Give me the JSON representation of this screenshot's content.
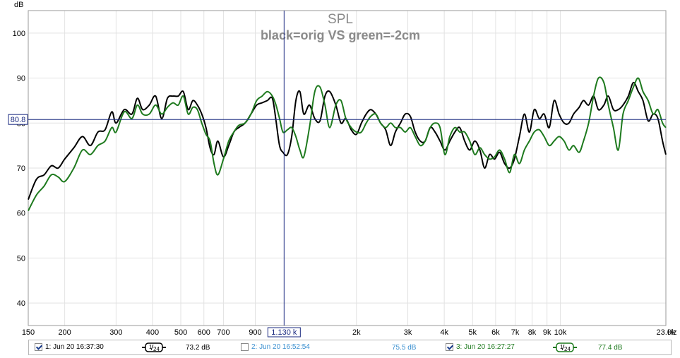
{
  "chart_data": {
    "type": "line",
    "title": "SPL",
    "subtitle": "black=orig VS green=-2cm",
    "ylabel": "dB",
    "xlabel": "Hz",
    "x_scale": "log",
    "xlim": [
      150,
      23000
    ],
    "ylim": [
      35,
      105
    ],
    "y_ticks": [
      40,
      50,
      60,
      70,
      80,
      90,
      100
    ],
    "x_ticks": [
      {
        "v": 150,
        "label": "150"
      },
      {
        "v": 200,
        "label": "200"
      },
      {
        "v": 300,
        "label": "300"
      },
      {
        "v": 400,
        "label": "400"
      },
      {
        "v": 500,
        "label": "500"
      },
      {
        "v": 600,
        "label": "600"
      },
      {
        "v": 700,
        "label": "700"
      },
      {
        "v": 900,
        "label": "900"
      },
      {
        "v": 2000,
        "label": "2k"
      },
      {
        "v": 3000,
        "label": "3k"
      },
      {
        "v": 4000,
        "label": "4k"
      },
      {
        "v": 5000,
        "label": "5k"
      },
      {
        "v": 6000,
        "label": "6k"
      },
      {
        "v": 7000,
        "label": "7k"
      },
      {
        "v": 8000,
        "label": "8k"
      },
      {
        "v": 9000,
        "label": "9k"
      },
      {
        "v": 10000,
        "label": "10k"
      },
      {
        "v": 23000,
        "label": "23.0k"
      }
    ],
    "cursor": {
      "x": 1130,
      "y": 80.8,
      "x_label": "1.130 k",
      "y_label": "80.8"
    },
    "series": [
      {
        "color": "#000000",
        "points": [
          [
            150,
            63
          ],
          [
            160,
            67.5
          ],
          [
            170,
            68.5
          ],
          [
            180,
            70.5
          ],
          [
            190,
            70
          ],
          [
            200,
            72
          ],
          [
            215,
            74.5
          ],
          [
            230,
            77
          ],
          [
            245,
            75
          ],
          [
            260,
            78
          ],
          [
            275,
            78.5
          ],
          [
            290,
            82.5
          ],
          [
            300,
            80
          ],
          [
            320,
            83
          ],
          [
            340,
            82
          ],
          [
            355,
            85.5
          ],
          [
            370,
            83
          ],
          [
            390,
            84
          ],
          [
            410,
            86
          ],
          [
            430,
            81
          ],
          [
            450,
            85.5
          ],
          [
            470,
            86
          ],
          [
            490,
            86
          ],
          [
            510,
            87
          ],
          [
            530,
            83
          ],
          [
            550,
            85
          ],
          [
            570,
            84
          ],
          [
            590,
            82
          ],
          [
            610,
            79
          ],
          [
            630,
            74.5
          ],
          [
            650,
            73
          ],
          [
            670,
            76
          ],
          [
            700,
            72.5
          ],
          [
            730,
            75
          ],
          [
            760,
            78
          ],
          [
            790,
            79
          ],
          [
            830,
            80
          ],
          [
            870,
            82
          ],
          [
            910,
            84
          ],
          [
            950,
            84.5
          ],
          [
            990,
            85
          ],
          [
            1030,
            85.5
          ],
          [
            1060,
            80.5
          ],
          [
            1090,
            75
          ],
          [
            1120,
            73.5
          ],
          [
            1160,
            73
          ],
          [
            1200,
            77
          ],
          [
            1240,
            85
          ],
          [
            1280,
            87
          ],
          [
            1320,
            82
          ],
          [
            1380,
            84
          ],
          [
            1440,
            81
          ],
          [
            1500,
            80.5
          ],
          [
            1560,
            86
          ],
          [
            1620,
            87
          ],
          [
            1700,
            84
          ],
          [
            1770,
            80
          ],
          [
            1840,
            81
          ],
          [
            1920,
            78.5
          ],
          [
            2000,
            77.5
          ],
          [
            2080,
            80
          ],
          [
            2160,
            82
          ],
          [
            2240,
            83
          ],
          [
            2330,
            82
          ],
          [
            2420,
            80
          ],
          [
            2520,
            78.5
          ],
          [
            2620,
            75
          ],
          [
            2720,
            78
          ],
          [
            2830,
            80
          ],
          [
            2940,
            82
          ],
          [
            3060,
            81.5
          ],
          [
            3180,
            78
          ],
          [
            3310,
            76
          ],
          [
            3440,
            76
          ],
          [
            3580,
            79
          ],
          [
            3720,
            78
          ],
          [
            3870,
            76
          ],
          [
            4020,
            74
          ],
          [
            4180,
            76
          ],
          [
            4350,
            78
          ],
          [
            4520,
            79
          ],
          [
            4700,
            76
          ],
          [
            4890,
            74
          ],
          [
            5090,
            76
          ],
          [
            5300,
            74
          ],
          [
            5500,
            70
          ],
          [
            5720,
            73
          ],
          [
            5950,
            72
          ],
          [
            6190,
            73.5
          ],
          [
            6440,
            71
          ],
          [
            6700,
            70
          ],
          [
            6960,
            72
          ],
          [
            7240,
            77
          ],
          [
            7530,
            82
          ],
          [
            7830,
            78
          ],
          [
            8140,
            83
          ],
          [
            8470,
            81
          ],
          [
            8800,
            82
          ],
          [
            9160,
            79
          ],
          [
            9520,
            85
          ],
          [
            9900,
            82
          ],
          [
            10300,
            80
          ],
          [
            10700,
            80
          ],
          [
            11100,
            82
          ],
          [
            11600,
            83.5
          ],
          [
            12000,
            85
          ],
          [
            12500,
            84
          ],
          [
            13000,
            86
          ],
          [
            13500,
            83
          ],
          [
            14100,
            84
          ],
          [
            14600,
            86
          ],
          [
            15200,
            83
          ],
          [
            15800,
            83
          ],
          [
            16400,
            84
          ],
          [
            17100,
            86
          ],
          [
            17800,
            89
          ],
          [
            18500,
            87
          ],
          [
            19200,
            85
          ],
          [
            20000,
            80.5
          ],
          [
            20800,
            82
          ],
          [
            21600,
            81
          ],
          [
            22400,
            76
          ],
          [
            23000,
            73
          ]
        ]
      },
      {
        "color": "#1e7a1e",
        "points": [
          [
            150,
            60.5
          ],
          [
            160,
            64
          ],
          [
            170,
            66
          ],
          [
            180,
            68.5
          ],
          [
            190,
            68
          ],
          [
            200,
            67
          ],
          [
            215,
            70
          ],
          [
            230,
            74
          ],
          [
            245,
            73
          ],
          [
            260,
            75
          ],
          [
            275,
            76
          ],
          [
            290,
            79
          ],
          [
            300,
            78
          ],
          [
            320,
            82.5
          ],
          [
            340,
            81
          ],
          [
            355,
            84
          ],
          [
            370,
            82
          ],
          [
            390,
            82
          ],
          [
            410,
            84
          ],
          [
            430,
            82
          ],
          [
            450,
            83.5
          ],
          [
            470,
            84.5
          ],
          [
            490,
            84
          ],
          [
            510,
            86
          ],
          [
            530,
            82
          ],
          [
            550,
            83.5
          ],
          [
            570,
            83
          ],
          [
            590,
            80
          ],
          [
            610,
            77.5
          ],
          [
            630,
            76
          ],
          [
            650,
            71
          ],
          [
            670,
            68.5
          ],
          [
            700,
            72
          ],
          [
            730,
            76
          ],
          [
            760,
            78
          ],
          [
            790,
            79.5
          ],
          [
            830,
            80
          ],
          [
            870,
            82
          ],
          [
            910,
            85
          ],
          [
            950,
            86
          ],
          [
            990,
            87
          ],
          [
            1030,
            86
          ],
          [
            1060,
            84
          ],
          [
            1090,
            81
          ],
          [
            1120,
            78
          ],
          [
            1160,
            78.5
          ],
          [
            1200,
            79
          ],
          [
            1240,
            77
          ],
          [
            1280,
            74
          ],
          [
            1320,
            72.5
          ],
          [
            1380,
            79
          ],
          [
            1440,
            87
          ],
          [
            1500,
            88
          ],
          [
            1560,
            84
          ],
          [
            1620,
            79
          ],
          [
            1700,
            84
          ],
          [
            1770,
            85
          ],
          [
            1840,
            81
          ],
          [
            1920,
            79
          ],
          [
            2000,
            78
          ],
          [
            2080,
            78
          ],
          [
            2160,
            80
          ],
          [
            2240,
            81.5
          ],
          [
            2330,
            82
          ],
          [
            2420,
            80
          ],
          [
            2520,
            79
          ],
          [
            2620,
            80
          ],
          [
            2720,
            79
          ],
          [
            2830,
            79
          ],
          [
            2940,
            78
          ],
          [
            3060,
            79
          ],
          [
            3180,
            77
          ],
          [
            3310,
            75
          ],
          [
            3440,
            76
          ],
          [
            3580,
            79
          ],
          [
            3720,
            80
          ],
          [
            3870,
            79
          ],
          [
            4020,
            73
          ],
          [
            4180,
            77
          ],
          [
            4350,
            79
          ],
          [
            4520,
            78
          ],
          [
            4700,
            78
          ],
          [
            4890,
            76
          ],
          [
            5090,
            73
          ],
          [
            5300,
            74.5
          ],
          [
            5500,
            73
          ],
          [
            5720,
            72
          ],
          [
            5950,
            72.5
          ],
          [
            6190,
            74
          ],
          [
            6440,
            72
          ],
          [
            6700,
            69
          ],
          [
            6960,
            73
          ],
          [
            7240,
            71
          ],
          [
            7530,
            74
          ],
          [
            7830,
            76
          ],
          [
            8140,
            78
          ],
          [
            8470,
            78.5
          ],
          [
            8800,
            77
          ],
          [
            9160,
            75
          ],
          [
            9520,
            76
          ],
          [
            9900,
            77
          ],
          [
            10300,
            76
          ],
          [
            10700,
            74
          ],
          [
            11100,
            75
          ],
          [
            11600,
            73.5
          ],
          [
            12000,
            76
          ],
          [
            12500,
            80
          ],
          [
            13000,
            86
          ],
          [
            13500,
            90
          ],
          [
            14100,
            89
          ],
          [
            14600,
            84
          ],
          [
            15200,
            79
          ],
          [
            15800,
            74
          ],
          [
            16400,
            82
          ],
          [
            17100,
            85
          ],
          [
            17800,
            88
          ],
          [
            18500,
            90
          ],
          [
            19200,
            87
          ],
          [
            20000,
            85
          ],
          [
            20800,
            82
          ],
          [
            21600,
            83
          ],
          [
            22400,
            80
          ],
          [
            23000,
            79
          ]
        ]
      }
    ]
  },
  "legend": [
    {
      "checked": true,
      "label": "1: Jun 20 16:37:30",
      "smoothing": "1/24",
      "value": "73.2 dB",
      "color": "#000000",
      "text_color": "#000000"
    },
    {
      "checked": false,
      "label": "2: Jun 20 16:52:54",
      "smoothing": "",
      "value": "75.5 dB",
      "color": "#3a8fd0",
      "text_color": "#3a8fd0"
    },
    {
      "checked": true,
      "label": "3: Jun 20 16:27:27",
      "smoothing": "1/24",
      "value": "77.4 dB",
      "color": "#1e7a1e",
      "text_color": "#1e7a1e"
    }
  ]
}
